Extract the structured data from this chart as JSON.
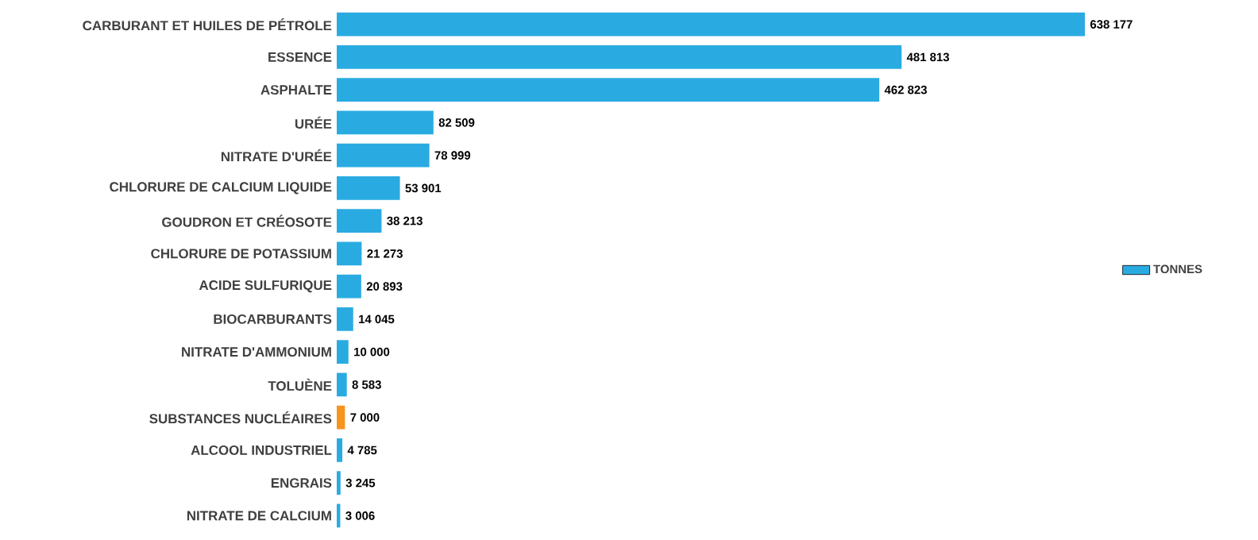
{
  "chart_data": {
    "type": "bar",
    "orientation": "horizontal",
    "legend": "right",
    "categories": [
      "CARBURANT ET HUILES DE PÉTROLE",
      "ESSENCE",
      "ASPHALTE",
      "URÉE",
      "NITRATE D'URÉE",
      "CHLORURE DE CALCIUM LIQUIDE",
      "GOUDRON ET CRÉOSOTE",
      "CHLORURE DE POTASSIUM",
      "ACIDE SULFURIQUE",
      "BIOCARBURANTS",
      "NITRATE D'AMMONIUM",
      "TOLUÈNE",
      "SUBSTANCES NUCLÉAIRES",
      "ALCOOL INDUSTRIEL",
      "ENGRAIS",
      "NITRATE DE CALCIUM"
    ],
    "series": [
      {
        "name": "TONNES",
        "color": "#29abe2",
        "values": [
          638177,
          481813,
          462823,
          82509,
          78999,
          53901,
          38213,
          21273,
          20893,
          14045,
          10000,
          8583,
          7000,
          4785,
          3245,
          3006
        ],
        "colors": [
          "#29abe2",
          "#29abe2",
          "#29abe2",
          "#29abe2",
          "#29abe2",
          "#29abe2",
          "#29abe2",
          "#29abe2",
          "#29abe2",
          "#29abe2",
          "#29abe2",
          "#29abe2",
          "#f7941d",
          "#29abe2",
          "#29abe2",
          "#29abe2"
        ],
        "value_labels": [
          "638 177",
          "481 813",
          "462 823",
          "82 509",
          "78 999",
          "53 901",
          "38 213",
          "21 273",
          "20 893",
          "14 045",
          "10 000",
          "8 583",
          "7 000",
          "4 785",
          "3 245",
          "3 006"
        ]
      }
    ]
  }
}
